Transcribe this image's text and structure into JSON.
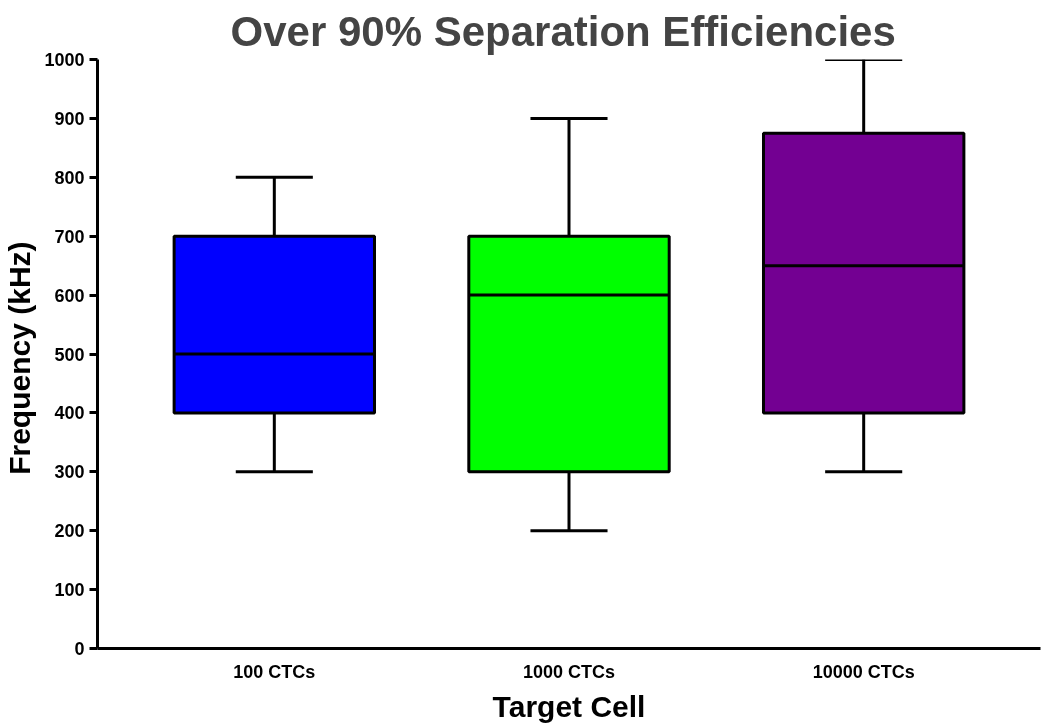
{
  "chart_data": {
    "type": "box",
    "title": "Over 90% Separation  Efficiencies",
    "xlabel": "Target Cell",
    "ylabel": "Frequency  (kHz)",
    "categories": [
      "100 CTCs",
      "1000 CTCs",
      "10000 CTCs"
    ],
    "colors": [
      "#0000ff",
      "#00ff00",
      "#730092"
    ],
    "boxes": [
      {
        "low": 300,
        "q1": 400,
        "median": 500,
        "q3": 700,
        "high": 800
      },
      {
        "low": 200,
        "q1": 300,
        "median": 600,
        "q3": 700,
        "high": 900
      },
      {
        "low": 300,
        "q1": 400,
        "median": 650,
        "q3": 875,
        "high": 1000
      }
    ],
    "ylim": [
      0,
      1000
    ],
    "yticks": [
      0,
      100,
      200,
      300,
      400,
      500,
      600,
      700,
      800,
      900,
      1000
    ],
    "grid": false
  }
}
